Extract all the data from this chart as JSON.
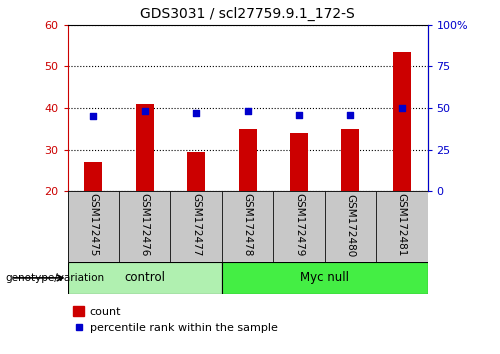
{
  "title": "GDS3031 / scl27759.9.1_172-S",
  "categories": [
    "GSM172475",
    "GSM172476",
    "GSM172477",
    "GSM172478",
    "GSM172479",
    "GSM172480",
    "GSM172481"
  ],
  "count_values": [
    27.0,
    41.0,
    29.5,
    35.0,
    34.0,
    35.0,
    53.5
  ],
  "percentile_values": [
    45,
    48,
    47,
    48,
    46,
    46,
    50
  ],
  "ylim": [
    20,
    60
  ],
  "yticks": [
    20,
    30,
    40,
    50,
    60
  ],
  "right_ylim": [
    0,
    100
  ],
  "right_yticks": [
    0,
    25,
    50,
    75,
    100
  ],
  "right_yticklabels": [
    "0",
    "25",
    "50",
    "75",
    "100%"
  ],
  "bar_color": "#cc0000",
  "dot_color": "#0000cc",
  "bar_width": 0.35,
  "control_label": "control",
  "myc_null_label": "Myc null",
  "genotype_label": "genotype/variation",
  "legend_count": "count",
  "legend_percentile": "percentile rank within the sample",
  "left_axis_color": "#cc0000",
  "right_axis_color": "#0000cc",
  "tick_area_color": "#c8c8c8",
  "control_bg": "#b0f0b0",
  "myc_null_bg": "#44ee44"
}
